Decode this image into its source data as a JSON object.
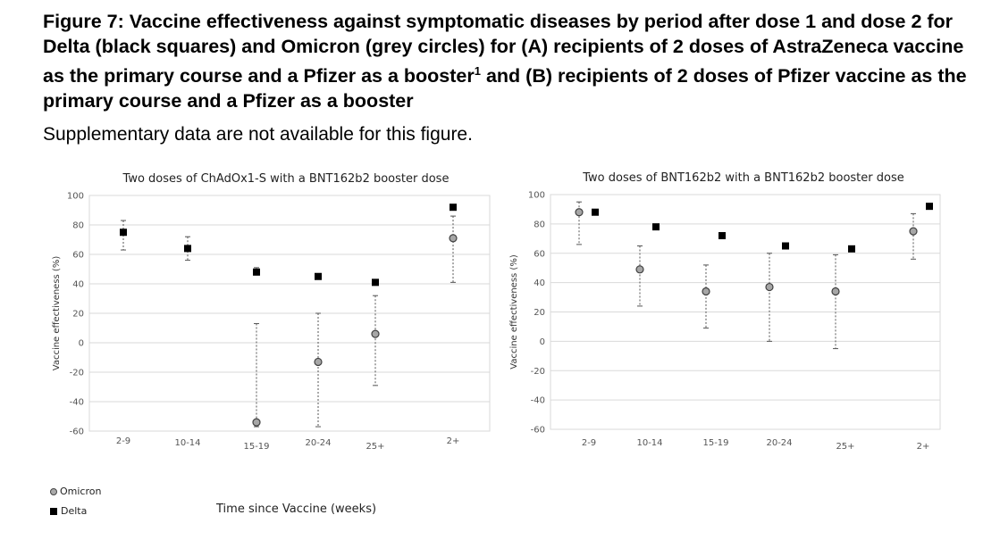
{
  "figure": {
    "title_main": "Figure 7: Vaccine effectiveness against symptomatic diseases by period after dose 1 and dose 2 for Delta (black squares) and Omicron (grey circles) for (A) recipients of 2 doses of AstraZeneca vaccine as the primary course and a Pfizer as a booster",
    "title_sup": "1",
    "title_rest": " and (B) recipients of 2 doses of Pfizer vaccine as the primary course and a Pfizer as a booster",
    "subtitle": "Supplementary data are not available for this figure."
  },
  "legend": {
    "omicron": "Omicron",
    "delta": "Delta"
  },
  "x_axis_title": "Time since Vaccine (weeks)",
  "colors": {
    "omicron_fill": "#a6a6a6",
    "omicron_stroke": "#404040",
    "delta": "#000000",
    "gridline": "#d9d9d9",
    "errorbar": "#555555"
  },
  "chart_data": [
    {
      "type": "scatter",
      "title": "Two doses of ChAdOx1-S with a BNT162b2 booster dose",
      "ylabel": "Vaccine effectiveness (%)",
      "xlabel": "",
      "ylim": [
        -60,
        100
      ],
      "yticks": [
        100,
        80,
        60,
        40,
        20,
        0,
        -20,
        -40,
        -60
      ],
      "grid": true,
      "categories": [
        "2-9",
        "10-14",
        "15-19",
        "20-24",
        "25+",
        "2+"
      ],
      "series": [
        {
          "name": "Omicron",
          "marker": "circle",
          "values": [
            null,
            null,
            -54,
            -13,
            6,
            71
          ],
          "lower": [
            null,
            null,
            -57,
            -57,
            -29,
            41
          ],
          "upper": [
            null,
            null,
            13,
            20,
            32,
            86
          ]
        },
        {
          "name": "Delta",
          "marker": "square",
          "values": [
            75,
            64,
            48,
            45,
            41,
            92
          ],
          "lower": [
            63,
            56,
            46,
            null,
            null,
            null
          ],
          "upper": [
            83,
            72,
            51,
            null,
            null,
            null
          ]
        }
      ]
    },
    {
      "type": "scatter",
      "title": "Two doses of BNT162b2 with a BNT162b2 booster dose",
      "ylabel": "Vaccine effectiveness (%)",
      "xlabel": "",
      "ylim": [
        -60,
        100
      ],
      "yticks": [
        100,
        80,
        60,
        40,
        20,
        0,
        -20,
        -40,
        -60
      ],
      "grid": true,
      "categories": [
        "2-9",
        "10-14",
        "15-19",
        "20-24",
        "25+",
        "2+"
      ],
      "series": [
        {
          "name": "Omicron",
          "marker": "circle",
          "values": [
            88,
            49,
            34,
            37,
            34,
            75
          ],
          "lower": [
            66,
            24,
            9,
            0,
            -5,
            56
          ],
          "upper": [
            95,
            65,
            52,
            60,
            59,
            87
          ]
        },
        {
          "name": "Delta",
          "marker": "square",
          "values": [
            88,
            78,
            72,
            65,
            63,
            92
          ],
          "lower": [
            null,
            null,
            null,
            null,
            null,
            null
          ],
          "upper": [
            null,
            null,
            null,
            null,
            null,
            null
          ]
        }
      ]
    }
  ]
}
